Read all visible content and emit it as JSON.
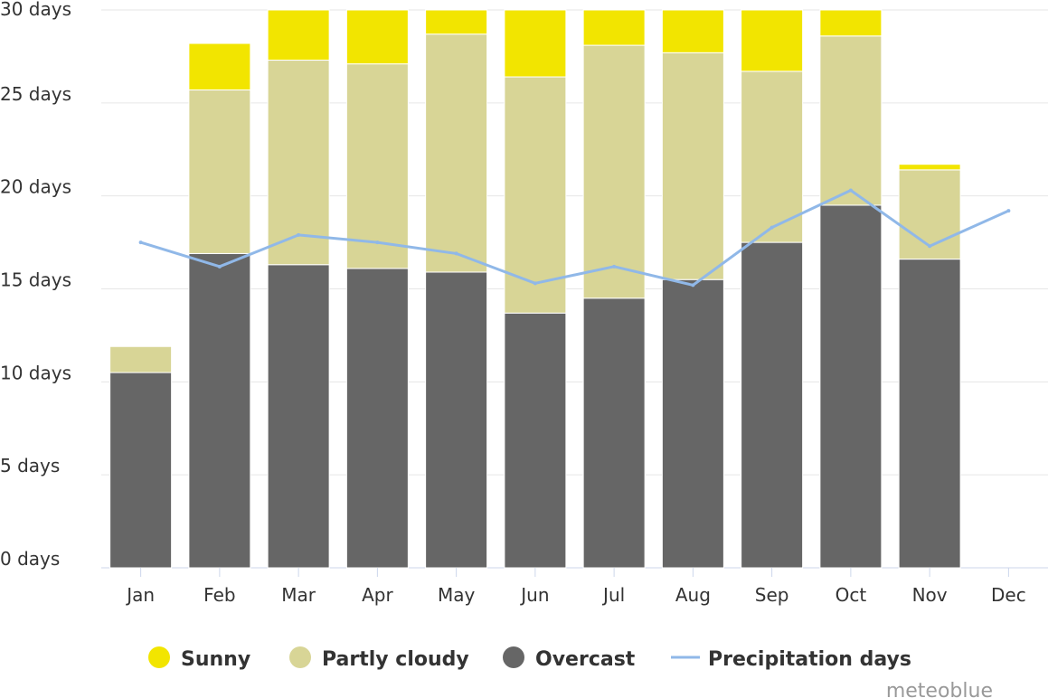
{
  "chart_data": {
    "type": "bar",
    "stacked": true,
    "categories": [
      "Jan",
      "Feb",
      "Mar",
      "Apr",
      "May",
      "Jun",
      "Jul",
      "Aug",
      "Sep",
      "Oct",
      "Nov",
      "Dec"
    ],
    "series": [
      {
        "name": "Overcast",
        "kind": "bar",
        "color": "#666666",
        "values": [
          10.5,
          16.9,
          16.3,
          16.1,
          15.9,
          13.7,
          14.5,
          15.5,
          17.5,
          19.5,
          16.6,
          0
        ]
      },
      {
        "name": "Partly cloudy",
        "kind": "bar",
        "color": "#d8d596",
        "values": [
          1.4,
          8.8,
          11.0,
          11.0,
          12.8,
          12.7,
          13.6,
          12.2,
          9.2,
          9.1,
          4.8,
          0
        ]
      },
      {
        "name": "Sunny",
        "kind": "bar",
        "color": "#f2e500",
        "values": [
          0,
          2.5,
          2.7,
          2.9,
          1.3,
          3.6,
          1.9,
          2.3,
          3.3,
          1.4,
          0.3,
          0
        ]
      },
      {
        "name": "Precipitation days",
        "kind": "line",
        "color": "#90b8e8",
        "values": [
          17.5,
          16.2,
          17.9,
          17.5,
          16.9,
          15.3,
          16.2,
          15.2,
          18.3,
          20.3,
          17.3,
          19.2
        ]
      }
    ],
    "ylim": [
      0,
      30
    ],
    "yticks": [
      0,
      5,
      10,
      15,
      20,
      25,
      30
    ],
    "ytick_suffix": " days",
    "grid": true,
    "legend_position": "bottom",
    "legend": [
      {
        "label": "Sunny",
        "marker": "circle",
        "color": "#f2e500"
      },
      {
        "label": "Partly cloudy",
        "marker": "circle",
        "color": "#d8d596"
      },
      {
        "label": "Overcast",
        "marker": "circle",
        "color": "#666666"
      },
      {
        "label": "Precipitation days",
        "marker": "line",
        "color": "#90b8e8"
      }
    ],
    "credit": "meteoblue"
  }
}
